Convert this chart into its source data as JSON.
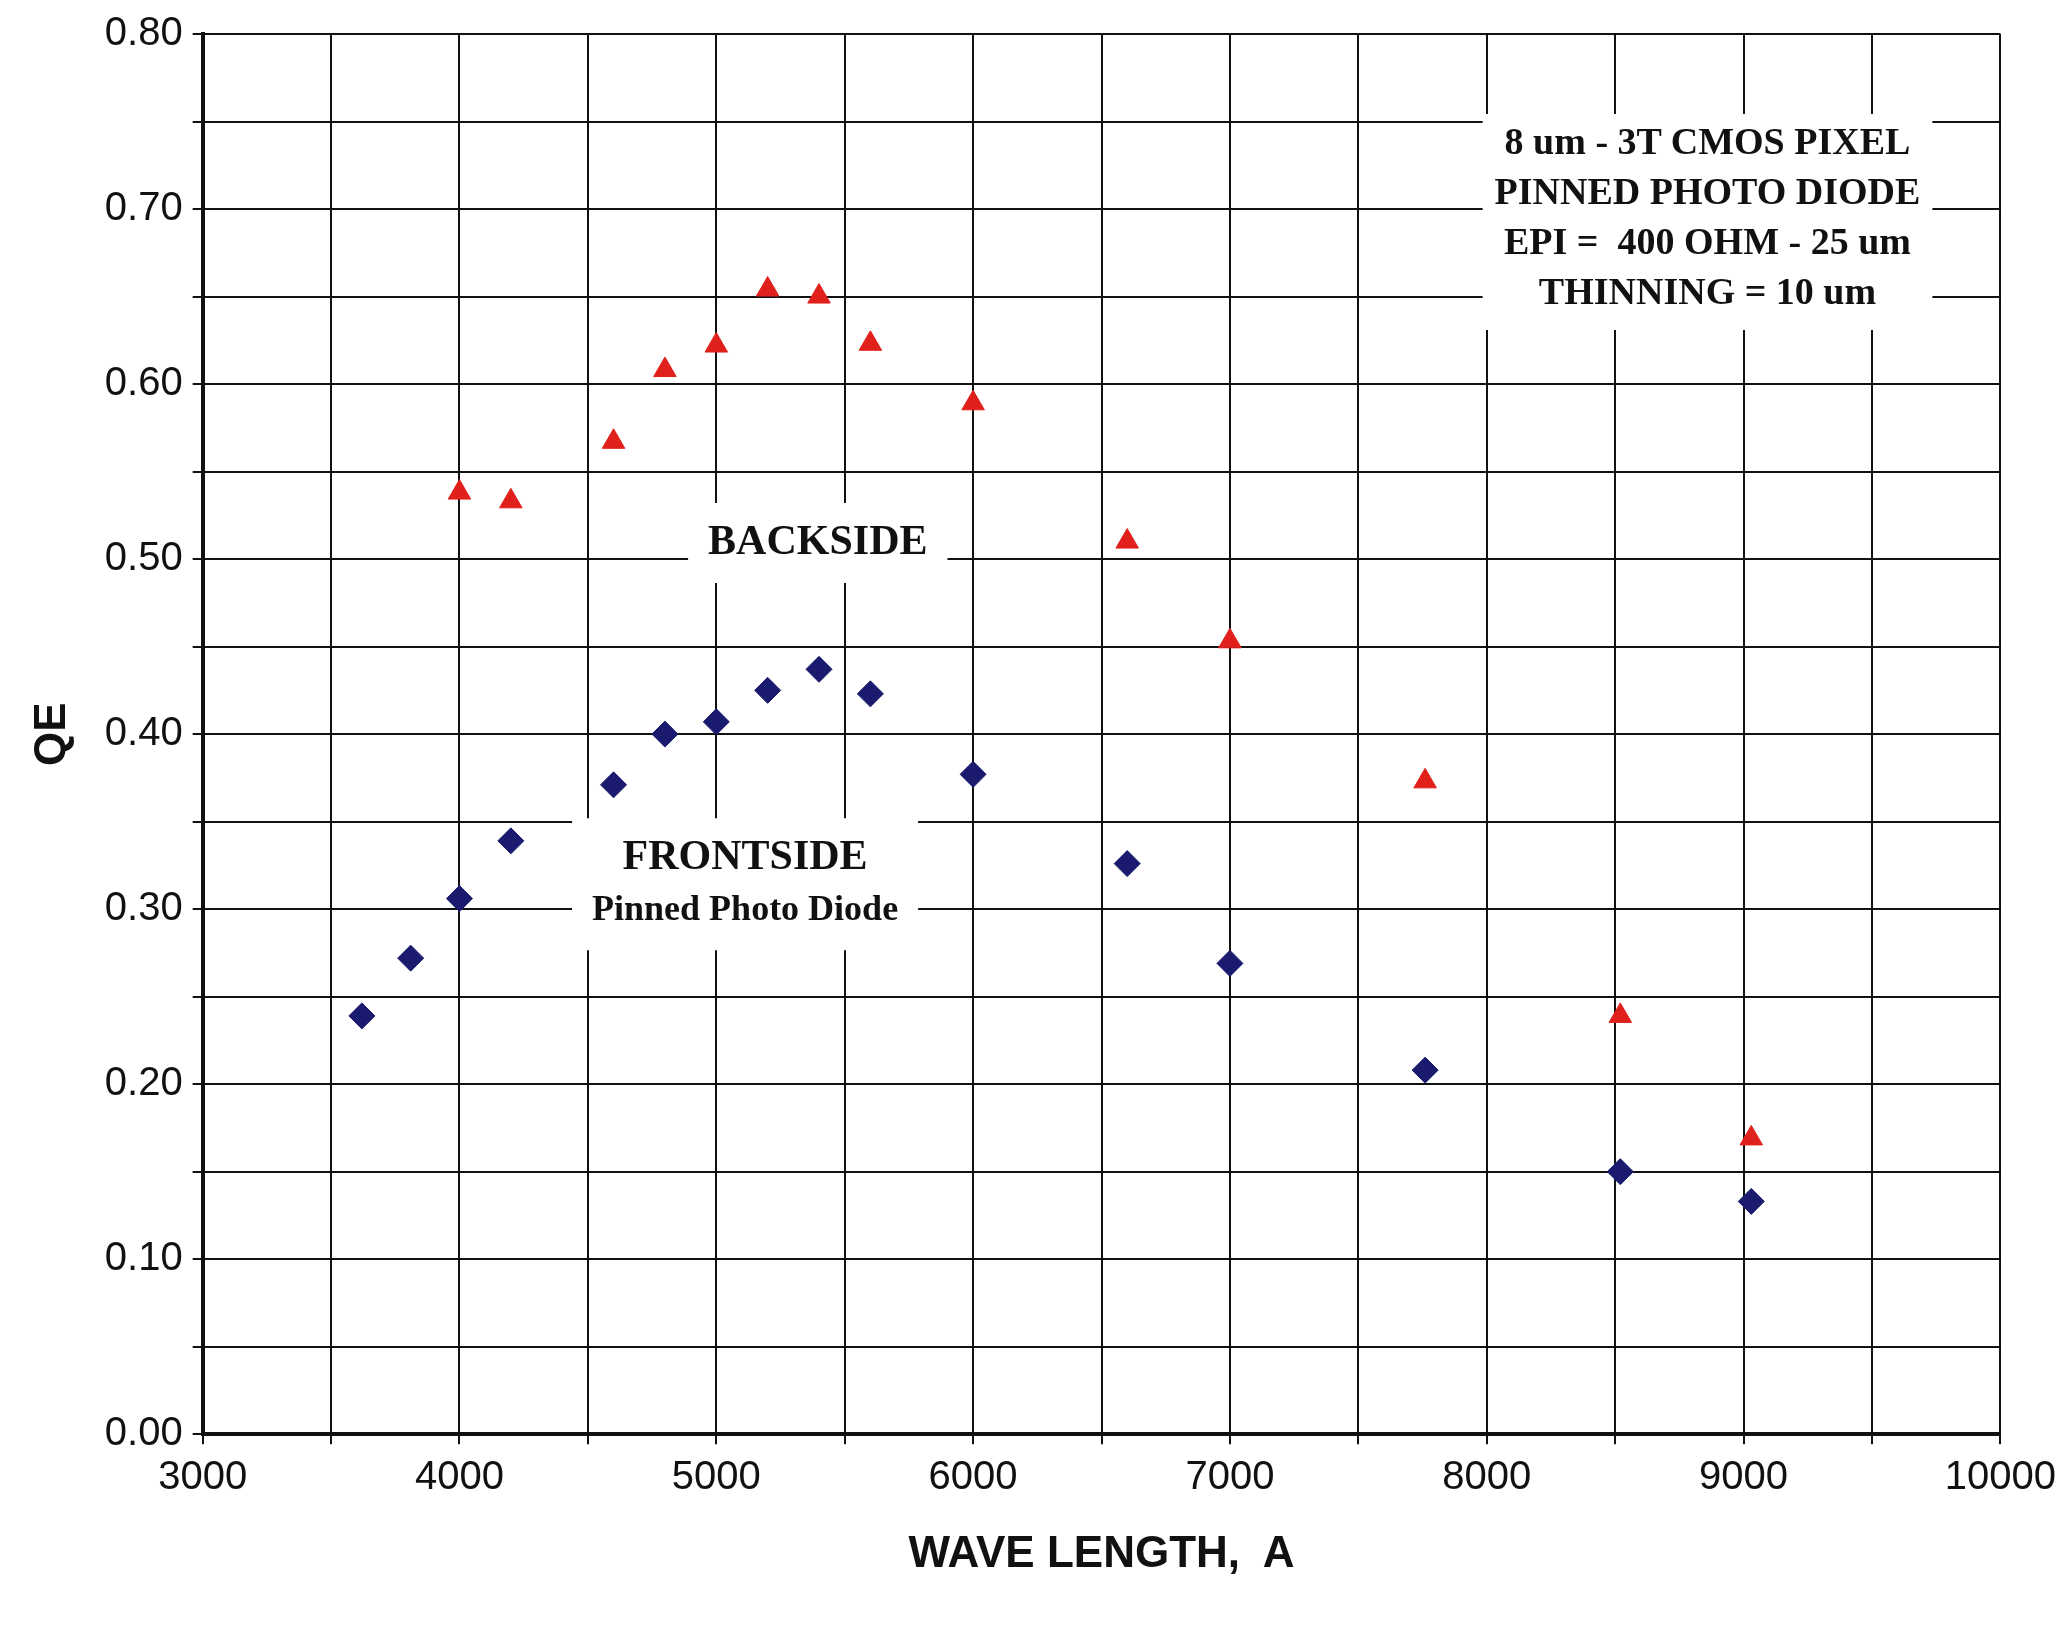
{
  "chart_data": {
    "type": "scatter",
    "xlabel": "WAVE LENGTH,  A",
    "ylabel": "QE",
    "xlim": [
      3000,
      10000
    ],
    "ylim": [
      0,
      0.8
    ],
    "xticks": [
      3000,
      {
        "value": 3500,
        "label": null
      },
      4000,
      {
        "value": 4500,
        "label": null
      },
      5000,
      {
        "value": 5500,
        "label": null
      },
      6000,
      {
        "value": 6500,
        "label": null
      },
      7000,
      {
        "value": 7500,
        "label": null
      },
      8000,
      {
        "value": 8500,
        "label": null
      },
      9000,
      {
        "value": 9500,
        "label": null
      },
      10000
    ],
    "yticks": [
      {
        "value": 0,
        "label": "0.00"
      },
      {
        "value": 0.05,
        "label": null
      },
      {
        "value": 0.1,
        "label": "0.10"
      },
      {
        "value": 0.15,
        "label": null
      },
      {
        "value": 0.2,
        "label": "0.20"
      },
      {
        "value": 0.25,
        "label": null
      },
      {
        "value": 0.3,
        "label": "0.30"
      },
      {
        "value": 0.35,
        "label": null
      },
      {
        "value": 0.4,
        "label": "0.40"
      },
      {
        "value": 0.45,
        "label": null
      },
      {
        "value": 0.5,
        "label": "0.50"
      },
      {
        "value": 0.55,
        "label": null
      },
      {
        "value": 0.6,
        "label": "0.60"
      },
      {
        "value": 0.65,
        "label": null
      },
      {
        "value": 0.7,
        "label": "0.70"
      },
      {
        "value": 0.75,
        "label": null
      },
      {
        "value": 0.8,
        "label": "0.80"
      }
    ],
    "grid": true,
    "legend": false,
    "annotations": [
      "8 um - 3T CMOS PIXEL",
      "PINNED PHOTO DIODE",
      "EPI =  400 OHM - 25 um",
      "THINNING = 10 um"
    ],
    "series": [
      {
        "name": "BACKSIDE",
        "color": "#e0201b",
        "marker": "triangle",
        "x": [
          4000,
          4200,
          4600,
          4800,
          5000,
          5200,
          5400,
          5600,
          6000,
          6600,
          7000,
          7760,
          8520,
          9030
        ],
        "values": [
          0.538,
          0.533,
          0.567,
          0.608,
          0.622,
          0.654,
          0.65,
          0.623,
          0.589,
          0.51,
          0.453,
          0.373,
          0.239,
          0.169
        ]
      },
      {
        "name": "FRONTSIDE\nPinned Photo Diode",
        "color": "#1a1a6e",
        "marker": "diamond",
        "x": [
          3620,
          3810,
          4000,
          4200,
          4600,
          4800,
          5000,
          5200,
          5400,
          5600,
          6000,
          6600,
          7000,
          7760,
          8520,
          9030
        ],
        "values": [
          0.239,
          0.272,
          0.306,
          0.339,
          0.371,
          0.4,
          0.407,
          0.425,
          0.437,
          0.423,
          0.377,
          0.326,
          0.269,
          0.208,
          0.15,
          0.133
        ]
      }
    ]
  }
}
